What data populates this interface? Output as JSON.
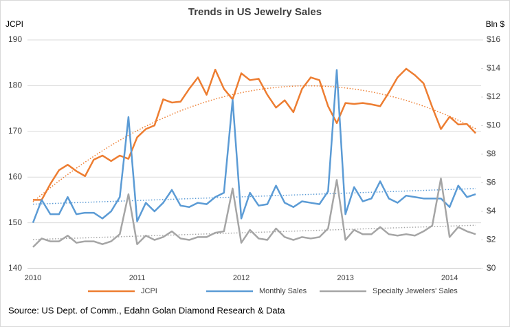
{
  "chart_data": {
    "type": "line",
    "title": "Trends in US Jewelry Sales",
    "ylabel": "JCPI",
    "y2label": "Bln $",
    "source": "Source: US Dept. of Comm., Edahn Golan Diamond Research & Data",
    "categories": [
      "2010",
      null,
      null,
      null,
      null,
      null,
      null,
      null,
      null,
      null,
      null,
      null,
      "2011",
      null,
      null,
      null,
      null,
      null,
      null,
      null,
      null,
      null,
      null,
      null,
      "2012",
      null,
      null,
      null,
      null,
      null,
      null,
      null,
      null,
      null,
      null,
      null,
      "2013",
      null,
      null,
      null,
      null,
      null,
      null,
      null,
      null,
      null,
      null,
      null,
      "2014",
      null,
      null,
      null
    ],
    "ylim": [
      140,
      190
    ],
    "yticks": [
      140,
      150,
      160,
      170,
      180,
      190
    ],
    "y2lim": [
      0,
      16
    ],
    "y2ticks": [
      {
        "value": 0,
        "label": "$0"
      },
      {
        "value": 2,
        "label": "$2"
      },
      {
        "value": 4,
        "label": "$4"
      },
      {
        "value": 6,
        "label": "$6"
      },
      {
        "value": 8,
        "label": "$8"
      },
      {
        "value": 10,
        "label": "$10"
      },
      {
        "value": 12,
        "label": "$12"
      },
      {
        "value": 14,
        "label": "$14"
      },
      {
        "value": 16,
        "label": "$16"
      }
    ],
    "grid": true,
    "legend": "bottom",
    "series": [
      {
        "name": "JCPI",
        "color": "#ed7d31",
        "trendline": "quadratic",
        "values": [
          155,
          155,
          158.5,
          161.5,
          162.7,
          161.3,
          160.2,
          163.8,
          164.7,
          163.5,
          164.7,
          164,
          168.7,
          170.5,
          171.3,
          177,
          176.3,
          176.5,
          179.3,
          181.8,
          178,
          183.5,
          179.3,
          177,
          182.7,
          181.2,
          181.5,
          178,
          175.2,
          176.8,
          174.2,
          179.3,
          181.8,
          181.2,
          175.5,
          171.8,
          176.2,
          176,
          176.2,
          175.9,
          175.5,
          178.5,
          181.8,
          183.7,
          182.3,
          180.5,
          175.3,
          170.5,
          173.2,
          171.5,
          171.6,
          169.6
        ]
      },
      {
        "name": "Monthly Sales",
        "color": "#5b9bd5",
        "axis": "y2",
        "trendline": "linear",
        "values": [
          3.2,
          4.8,
          3.8,
          3.8,
          5.0,
          3.8,
          3.9,
          3.9,
          3.5,
          4.0,
          5.0,
          10.6,
          3.3,
          4.6,
          4.0,
          4.6,
          5.5,
          4.4,
          4.3,
          4.6,
          4.5,
          5.0,
          5.3,
          11.8,
          3.5,
          5.3,
          4.4,
          4.5,
          5.8,
          4.6,
          4.3,
          4.7,
          4.6,
          4.5,
          5.4,
          13.9,
          3.8,
          5.7,
          4.7,
          4.9,
          6.1,
          4.9,
          4.6,
          5.1,
          5.0,
          4.9,
          4.9,
          4.9,
          4.3,
          5.8,
          5.0,
          5.2
        ]
      },
      {
        "name": "Specialty Jewelers' Sales",
        "color": "#a5a5a5",
        "axis": "y2",
        "trendline": "linear",
        "values": [
          1.5,
          2.1,
          1.9,
          1.9,
          2.3,
          1.8,
          1.9,
          1.9,
          1.7,
          1.9,
          2.4,
          5.2,
          1.7,
          2.3,
          2.0,
          2.2,
          2.6,
          2.1,
          2.0,
          2.2,
          2.2,
          2.5,
          2.6,
          5.6,
          1.8,
          2.7,
          2.1,
          2.0,
          2.8,
          2.2,
          2.0,
          2.2,
          2.1,
          2.2,
          2.8,
          6.2,
          2.0,
          2.7,
          2.4,
          2.4,
          2.9,
          2.4,
          2.3,
          2.4,
          2.3,
          2.6,
          3.0,
          6.3,
          2.2,
          2.9,
          2.6,
          2.4
        ]
      }
    ]
  }
}
